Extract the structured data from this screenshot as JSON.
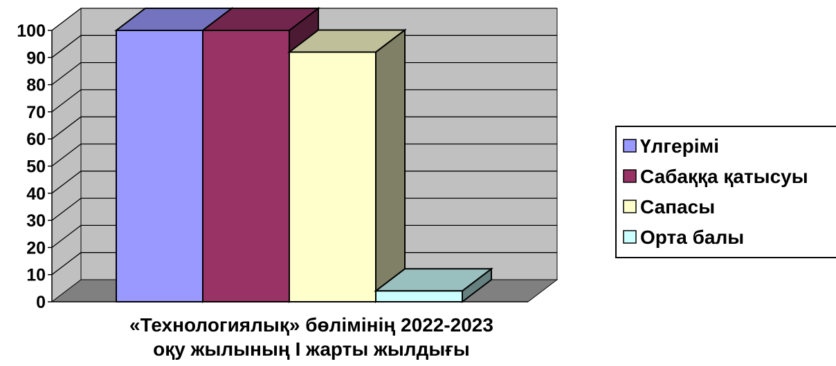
{
  "chart_data": {
    "type": "bar",
    "title": "",
    "xlabel_lines": [
      "«Технологиялық» бөлімінің 2022-2023",
      "оқу жылының I жарты жылдығы"
    ],
    "ylabel": "",
    "ylim": [
      0,
      100
    ],
    "yticks": [
      "0",
      "10",
      "20",
      "30",
      "40",
      "50",
      "60",
      "70",
      "80",
      "90",
      "100"
    ],
    "grid": true,
    "legend_position": "right",
    "three_d": true,
    "series": [
      {
        "name": "Үлгерімі",
        "value": 100,
        "color": "#9999ff"
      },
      {
        "name": "Сабаққа қатысуы",
        "value": 100,
        "color": "#993366"
      },
      {
        "name": "Сапасы",
        "value": 92,
        "color": "#ffffcc"
      },
      {
        "name": "Орта балы",
        "value": 4,
        "color": "#ccffff"
      }
    ]
  }
}
